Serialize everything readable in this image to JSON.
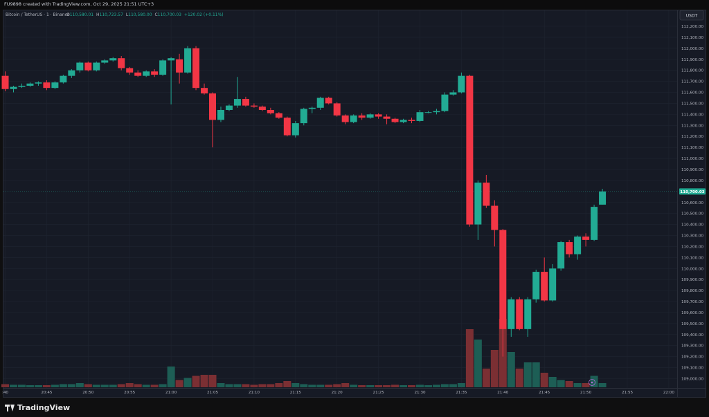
{
  "topbar": {
    "text": "FU9898 created with TradingView.com, Oct 29, 2025 21:51 UTC+3"
  },
  "legend": {
    "symbol": "Bitcoin / TetherUS · 1 · Binance",
    "o_label": "O",
    "o_value": "110,580.01",
    "h_label": "H",
    "h_value": "110,723.57",
    "l_label": "L",
    "l_value": "110,580.00",
    "c_label": "C",
    "c_value": "110,700.03",
    "change": "+120.02 (+0.11%)"
  },
  "currency": "USDT",
  "last_price_label": "110,700.03",
  "brand": "TradingView",
  "colors": {
    "up": "#22ab94",
    "down": "#f23645",
    "up_vol": "#1d5e55",
    "down_vol": "#7b2f33",
    "bg": "#161a25",
    "text": "#b2b5be"
  },
  "chart_data": {
    "type": "candlestick",
    "symbol": "Bitcoin / TetherUS · 1 · Binance",
    "interval": "1 minute",
    "y_ticks": [
      "112,200.00",
      "112,100.00",
      "112,000.00",
      "111,900.00",
      "111,800.00",
      "111,700.00",
      "111,600.00",
      "111,500.00",
      "111,400.00",
      "111,300.00",
      "111,200.00",
      "111,100.00",
      "111,000.00",
      "110,900.00",
      "110,800.00",
      "110,600.00",
      "110,500.00",
      "110,400.00",
      "110,300.00",
      "110,200.00",
      "110,100.00",
      "110,000.00",
      "109,900.00",
      "109,800.00",
      "109,700.00",
      "109,600.00",
      "109,500.00",
      "109,400.00",
      "109,300.00",
      "109,200.00",
      "109,100.00",
      "109,000.00"
    ],
    "y_range": [
      108950,
      112300
    ],
    "x_ticks": [
      ":40",
      "20:45",
      "20:50",
      "20:55",
      "21:00",
      "21:05",
      "21:10",
      "21:15",
      "21:20",
      "21:25",
      "21:30",
      "21:35",
      "21:40",
      "21:45",
      "21:50",
      "21:55",
      "22:00"
    ],
    "x_tick_minutes": [
      0,
      5,
      10,
      15,
      20,
      25,
      30,
      35,
      40,
      45,
      50,
      55,
      60,
      65,
      70,
      75,
      80
    ],
    "x_range_minutes": [
      0,
      80.5
    ],
    "grid": true,
    "candles": [
      {
        "t": 0,
        "o": 111750,
        "h": 111790,
        "l": 111610,
        "c": 111630,
        "v": 0.15
      },
      {
        "t": 1,
        "o": 111630,
        "h": 111660,
        "l": 111600,
        "c": 111650,
        "v": 0.12
      },
      {
        "t": 2,
        "o": 111650,
        "h": 111680,
        "l": 111640,
        "c": 111660,
        "v": 0.12
      },
      {
        "t": 3,
        "o": 111660,
        "h": 111690,
        "l": 111650,
        "c": 111680,
        "v": 0.1
      },
      {
        "t": 4,
        "o": 111680,
        "h": 111700,
        "l": 111660,
        "c": 111690,
        "v": 0.1
      },
      {
        "t": 5,
        "o": 111690,
        "h": 111710,
        "l": 111620,
        "c": 111640,
        "v": 0.1
      },
      {
        "t": 6,
        "o": 111640,
        "h": 111700,
        "l": 111630,
        "c": 111690,
        "v": 0.12
      },
      {
        "t": 7,
        "o": 111690,
        "h": 111760,
        "l": 111680,
        "c": 111750,
        "v": 0.15
      },
      {
        "t": 8,
        "o": 111750,
        "h": 111810,
        "l": 111730,
        "c": 111800,
        "v": 0.15
      },
      {
        "t": 9,
        "o": 111800,
        "h": 111880,
        "l": 111780,
        "c": 111870,
        "v": 0.2
      },
      {
        "t": 10,
        "o": 111870,
        "h": 111880,
        "l": 111790,
        "c": 111800,
        "v": 0.15
      },
      {
        "t": 11,
        "o": 111800,
        "h": 111880,
        "l": 111790,
        "c": 111870,
        "v": 0.12
      },
      {
        "t": 12,
        "o": 111870,
        "h": 111900,
        "l": 111860,
        "c": 111890,
        "v": 0.12
      },
      {
        "t": 13,
        "o": 111890,
        "h": 111920,
        "l": 111880,
        "c": 111910,
        "v": 0.12
      },
      {
        "t": 14,
        "o": 111910,
        "h": 111930,
        "l": 111800,
        "c": 111820,
        "v": 0.15
      },
      {
        "t": 15,
        "o": 111820,
        "h": 111830,
        "l": 111760,
        "c": 111780,
        "v": 0.2
      },
      {
        "t": 16,
        "o": 111780,
        "h": 111800,
        "l": 111740,
        "c": 111750,
        "v": 0.15
      },
      {
        "t": 17,
        "o": 111750,
        "h": 111800,
        "l": 111740,
        "c": 111790,
        "v": 0.12
      },
      {
        "t": 18,
        "o": 111790,
        "h": 111810,
        "l": 111740,
        "c": 111760,
        "v": 0.12
      },
      {
        "t": 19,
        "o": 111760,
        "h": 111900,
        "l": 111750,
        "c": 111890,
        "v": 0.15
      },
      {
        "t": 20,
        "o": 111890,
        "h": 111920,
        "l": 111490,
        "c": 111910,
        "v": 1.0
      },
      {
        "t": 21,
        "o": 111900,
        "h": 111950,
        "l": 111680,
        "c": 111780,
        "v": 0.35
      },
      {
        "t": 22,
        "o": 111780,
        "h": 112020,
        "l": 111770,
        "c": 112000,
        "v": 0.45
      },
      {
        "t": 23,
        "o": 112000,
        "h": 112020,
        "l": 111620,
        "c": 111640,
        "v": 0.55
      },
      {
        "t": 24,
        "o": 111640,
        "h": 111680,
        "l": 111580,
        "c": 111590,
        "v": 0.6
      },
      {
        "t": 25,
        "o": 111590,
        "h": 111600,
        "l": 111100,
        "c": 111350,
        "v": 0.6
      },
      {
        "t": 26,
        "o": 111350,
        "h": 111470,
        "l": 111330,
        "c": 111440,
        "v": 0.2
      },
      {
        "t": 27,
        "o": 111440,
        "h": 111490,
        "l": 111430,
        "c": 111480,
        "v": 0.15
      },
      {
        "t": 28,
        "o": 111480,
        "h": 111740,
        "l": 111460,
        "c": 111540,
        "v": 0.15
      },
      {
        "t": 29,
        "o": 111540,
        "h": 111560,
        "l": 111470,
        "c": 111480,
        "v": 0.15
      },
      {
        "t": 30,
        "o": 111480,
        "h": 111500,
        "l": 111460,
        "c": 111470,
        "v": 0.12
      },
      {
        "t": 31,
        "o": 111470,
        "h": 111480,
        "l": 111430,
        "c": 111440,
        "v": 0.15
      },
      {
        "t": 32,
        "o": 111440,
        "h": 111460,
        "l": 111400,
        "c": 111410,
        "v": 0.15
      },
      {
        "t": 33,
        "o": 111410,
        "h": 111420,
        "l": 111360,
        "c": 111370,
        "v": 0.2
      },
      {
        "t": 34,
        "o": 111370,
        "h": 111380,
        "l": 111200,
        "c": 111210,
        "v": 0.3
      },
      {
        "t": 35,
        "o": 111210,
        "h": 111340,
        "l": 111190,
        "c": 111320,
        "v": 0.2
      },
      {
        "t": 36,
        "o": 111320,
        "h": 111460,
        "l": 111300,
        "c": 111450,
        "v": 0.15
      },
      {
        "t": 37,
        "o": 111450,
        "h": 111470,
        "l": 111410,
        "c": 111460,
        "v": 0.12
      },
      {
        "t": 38,
        "o": 111460,
        "h": 111560,
        "l": 111440,
        "c": 111550,
        "v": 0.12
      },
      {
        "t": 39,
        "o": 111550,
        "h": 111560,
        "l": 111490,
        "c": 111500,
        "v": 0.12
      },
      {
        "t": 40,
        "o": 111500,
        "h": 111510,
        "l": 111380,
        "c": 111390,
        "v": 0.15
      },
      {
        "t": 41,
        "o": 111390,
        "h": 111400,
        "l": 111310,
        "c": 111330,
        "v": 0.2
      },
      {
        "t": 42,
        "o": 111330,
        "h": 111400,
        "l": 111320,
        "c": 111390,
        "v": 0.12
      },
      {
        "t": 43,
        "o": 111390,
        "h": 111410,
        "l": 111350,
        "c": 111370,
        "v": 0.1
      },
      {
        "t": 44,
        "o": 111370,
        "h": 111410,
        "l": 111360,
        "c": 111400,
        "v": 0.1
      },
      {
        "t": 45,
        "o": 111400,
        "h": 111410,
        "l": 111360,
        "c": 111380,
        "v": 0.1
      },
      {
        "t": 46,
        "o": 111380,
        "h": 111400,
        "l": 111310,
        "c": 111360,
        "v": 0.1
      },
      {
        "t": 47,
        "o": 111360,
        "h": 111370,
        "l": 111320,
        "c": 111330,
        "v": 0.12
      },
      {
        "t": 48,
        "o": 111330,
        "h": 111360,
        "l": 111320,
        "c": 111350,
        "v": 0.1
      },
      {
        "t": 49,
        "o": 111350,
        "h": 111370,
        "l": 111320,
        "c": 111340,
        "v": 0.1
      },
      {
        "t": 50,
        "o": 111340,
        "h": 111440,
        "l": 111330,
        "c": 111420,
        "v": 0.12
      },
      {
        "t": 51,
        "o": 111420,
        "h": 111430,
        "l": 111410,
        "c": 111420,
        "v": 0.1
      },
      {
        "t": 52,
        "o": 111420,
        "h": 111450,
        "l": 111400,
        "c": 111430,
        "v": 0.12
      },
      {
        "t": 53,
        "o": 111430,
        "h": 111600,
        "l": 111420,
        "c": 111580,
        "v": 0.15
      },
      {
        "t": 54,
        "o": 111580,
        "h": 111620,
        "l": 111570,
        "c": 111600,
        "v": 0.15
      },
      {
        "t": 55,
        "o": 111600,
        "h": 111780,
        "l": 111590,
        "c": 111750,
        "v": 0.2
      },
      {
        "t": 56,
        "o": 111750,
        "h": 111760,
        "l": 110380,
        "c": 110400,
        "v": 2.8
      },
      {
        "t": 57,
        "o": 110400,
        "h": 110800,
        "l": 110260,
        "c": 110780,
        "v": 2.3
      },
      {
        "t": 58,
        "o": 110780,
        "h": 110850,
        "l": 110550,
        "c": 110570,
        "v": 0.9
      },
      {
        "t": 59,
        "o": 110570,
        "h": 110620,
        "l": 110200,
        "c": 110350,
        "v": 1.8
      },
      {
        "t": 60,
        "o": 110350,
        "h": 110360,
        "l": 109200,
        "c": 109450,
        "v": 3.3
      },
      {
        "t": 61,
        "o": 109450,
        "h": 109740,
        "l": 109380,
        "c": 109720,
        "v": 1.7
      },
      {
        "t": 62,
        "o": 109720,
        "h": 109740,
        "l": 109440,
        "c": 109450,
        "v": 0.9
      },
      {
        "t": 63,
        "o": 109450,
        "h": 109740,
        "l": 109380,
        "c": 109720,
        "v": 1.2
      },
      {
        "t": 64,
        "o": 109720,
        "h": 109990,
        "l": 109690,
        "c": 109970,
        "v": 1.2
      },
      {
        "t": 65,
        "o": 109970,
        "h": 110100,
        "l": 109700,
        "c": 109710,
        "v": 0.7
      },
      {
        "t": 66,
        "o": 109710,
        "h": 110040,
        "l": 109700,
        "c": 110000,
        "v": 0.5
      },
      {
        "t": 67,
        "o": 110000,
        "h": 110250,
        "l": 109980,
        "c": 110240,
        "v": 0.35
      },
      {
        "t": 68,
        "o": 110240,
        "h": 110260,
        "l": 110100,
        "c": 110130,
        "v": 0.3
      },
      {
        "t": 69,
        "o": 110130,
        "h": 110300,
        "l": 110080,
        "c": 110290,
        "v": 0.2
      },
      {
        "t": 70,
        "o": 110290,
        "h": 110320,
        "l": 110200,
        "c": 110260,
        "v": 0.2
      },
      {
        "t": 71,
        "o": 110260,
        "h": 110580,
        "l": 110250,
        "c": 110560,
        "v": 0.55
      },
      {
        "t": 72,
        "o": 110580,
        "h": 110724,
        "l": 110580,
        "c": 110700,
        "v": 0.2
      }
    ]
  }
}
